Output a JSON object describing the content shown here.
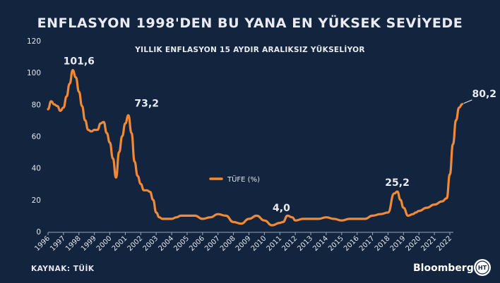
{
  "header": {
    "title": "ENFLASYON 1998'DEN BU YANA EN YÜKSEK SEVİYEDE",
    "subtitle": "YILLIK ENFLASYON 15 AYDIR ARALIKSIZ YÜKSELİYOR"
  },
  "footer": {
    "source": "KAYNAK: TÜİK",
    "brand": "Bloomberg",
    "logo_letters": "HT"
  },
  "colors": {
    "background": "#13243f",
    "line": "#f28a35",
    "text": "#e8ecf2"
  },
  "chart_data": {
    "type": "line",
    "title": "ENFLASYON 1998'DEN BU YANA EN YÜKSEK SEVİYEDE",
    "subtitle": "YILLIK ENFLASYON 15 AYDIR ARALIKSIZ YÜKSELİYOR",
    "ylim": [
      0,
      120
    ],
    "yticks": [
      0,
      20,
      40,
      60,
      80,
      100,
      120
    ],
    "xlim": [
      1996,
      2023.6
    ],
    "xticks": [
      "1996",
      "1997",
      "1998",
      "1999",
      "2000",
      "2001",
      "2002",
      "2003",
      "2004",
      "2005",
      "2006",
      "2007",
      "2008",
      "2009",
      "2010",
      "2011",
      "2012",
      "2013",
      "2014",
      "2015",
      "2016",
      "2017",
      "2018",
      "2019",
      "2020",
      "2021",
      "2022"
    ],
    "legend": {
      "position": "center",
      "entries": [
        "TÜFE (%)"
      ]
    },
    "grid": false,
    "series": [
      {
        "name": "TÜFE (%)",
        "x": [
          1996.0,
          1996.2,
          1996.4,
          1996.6,
          1996.8,
          1997.0,
          1997.2,
          1997.4,
          1997.6,
          1997.8,
          1998.0,
          1998.2,
          1998.4,
          1998.6,
          1998.8,
          1999.0,
          1999.2,
          1999.4,
          1999.6,
          1999.8,
          2000.0,
          2000.2,
          2000.4,
          2000.6,
          2000.8,
          2001.0,
          2001.2,
          2001.4,
          2001.6,
          2001.8,
          2002.0,
          2002.2,
          2002.4,
          2002.6,
          2002.8,
          2003.0,
          2003.2,
          2003.4,
          2003.6,
          2003.8,
          2004.0,
          2004.3,
          2004.6,
          2005.0,
          2005.5,
          2006.0,
          2006.5,
          2007.0,
          2007.5,
          2008.0,
          2008.5,
          2009.0,
          2009.5,
          2010.0,
          2010.5,
          2011.0,
          2011.2,
          2011.5,
          2011.8,
          2012.0,
          2012.5,
          2013.0,
          2013.5,
          2014.0,
          2014.5,
          2015.0,
          2015.5,
          2016.0,
          2016.5,
          2017.0,
          2017.5,
          2018.0,
          2018.4,
          2018.6,
          2018.8,
          2019.0,
          2019.3,
          2019.6,
          2019.8,
          2020.0,
          2020.5,
          2021.0,
          2021.5,
          2021.8,
          2022.0,
          2022.2,
          2022.4,
          2022.6,
          2022.8
        ],
        "values": [
          77,
          82,
          80,
          79,
          76,
          78,
          85,
          93,
          101.6,
          97,
          88,
          79,
          70,
          64,
          63,
          64,
          64,
          68,
          69,
          62,
          56,
          46,
          34,
          50,
          60,
          68,
          73.2,
          62,
          44,
          35,
          30,
          26,
          26,
          25,
          20,
          12,
          9,
          8,
          8,
          8,
          8,
          9,
          10,
          10,
          10,
          8,
          9,
          11,
          10,
          6,
          5,
          8,
          10,
          7,
          4,
          5.5,
          6,
          10,
          9,
          7,
          8,
          8,
          8,
          9,
          8,
          7,
          8,
          8,
          8,
          10,
          11,
          12,
          24,
          25.2,
          20,
          15,
          10,
          11,
          12,
          13,
          15,
          17,
          19,
          21,
          36,
          55,
          70,
          78,
          80.2
        ]
      }
    ],
    "annotations": [
      {
        "label": "101,6",
        "x": 1998.0,
        "y": 101.6
      },
      {
        "label": "73,2",
        "x": 2002.2,
        "y": 73.2
      },
      {
        "label": "4,0",
        "x": 2011.1,
        "y": 4.0
      },
      {
        "label": "25,2",
        "x": 2018.6,
        "y": 25.2
      },
      {
        "label": "80,2",
        "x": 2022.8,
        "y": 80.2
      }
    ]
  }
}
